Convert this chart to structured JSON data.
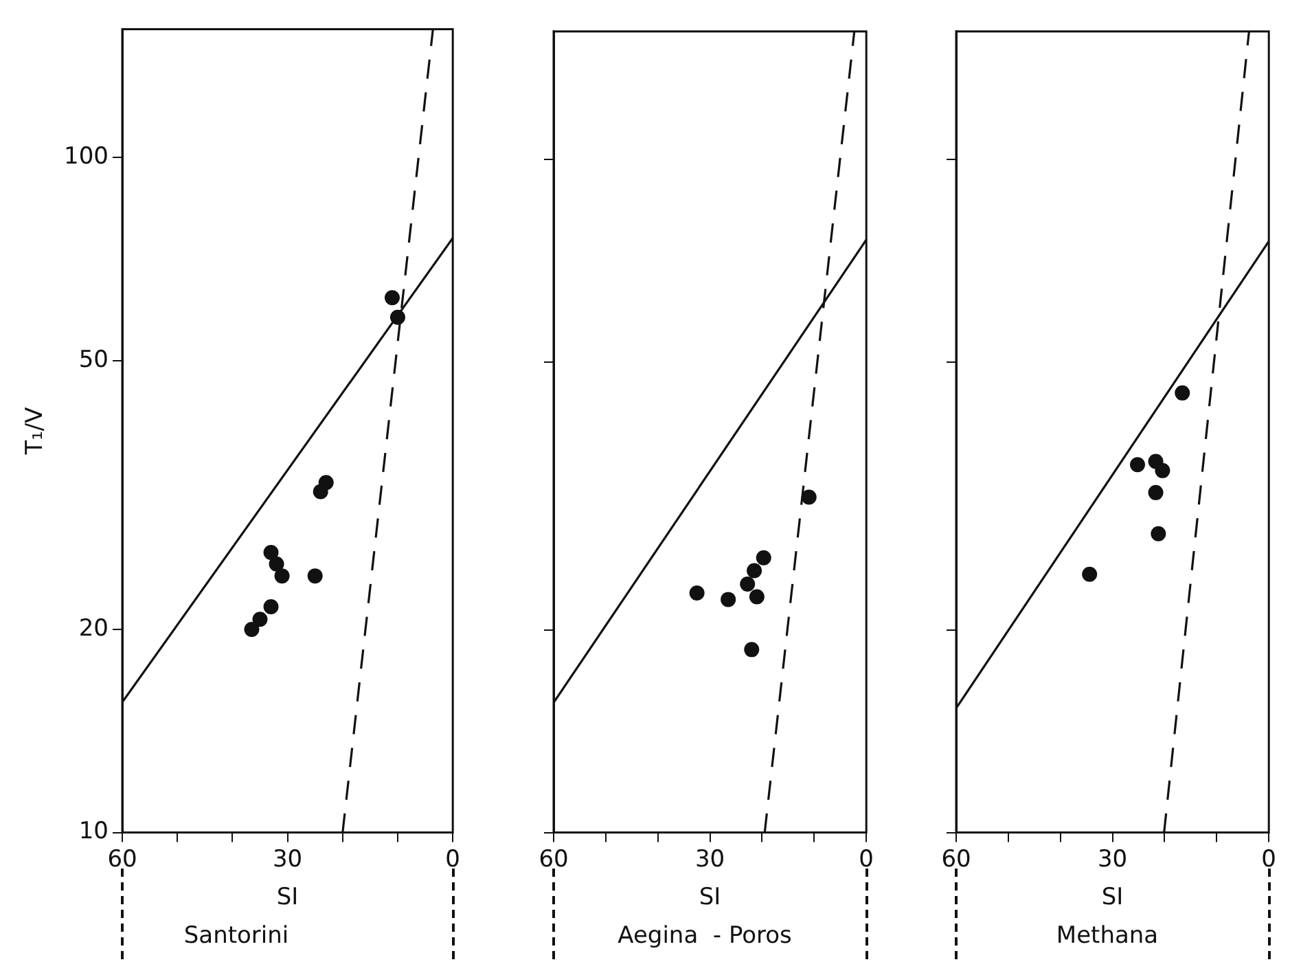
{
  "chart_data": [
    {
      "type": "scatter",
      "title": "Santorini",
      "xlabel": "SI",
      "ylabel": "T₁/V",
      "xlim": [
        60,
        0
      ],
      "ylim": [
        10,
        155
      ],
      "log": "y",
      "grid": false,
      "legend": false,
      "xticks": [
        60,
        {
          "value": 50,
          "label": null
        },
        {
          "value": 40,
          "label": null
        },
        30,
        {
          "value": 20,
          "label": null
        },
        {
          "value": 10,
          "label": null
        },
        0
      ],
      "yticks": [
        10,
        20,
        50,
        100
      ],
      "series": [
        {
          "marker": "circle",
          "color": "#111111",
          "x": [
            11,
            10,
            24,
            23,
            33,
            32,
            31,
            25,
            33,
            35,
            36.5
          ],
          "values": [
            62,
            58,
            32,
            33,
            26,
            25,
            24,
            24,
            21.6,
            20.7,
            20
          ]
        },
        {
          "type": "line",
          "color": "#111111",
          "line_style": "solid",
          "x": [
            60,
            0
          ],
          "values": [
            15.6,
            76
          ]
        },
        {
          "type": "line",
          "color": "#111111",
          "line_style": "dashed",
          "x": [
            20,
            3.6
          ],
          "values": [
            10,
            155
          ]
        }
      ]
    },
    {
      "type": "scatter",
      "title": "Aegina  - Poros",
      "xlabel": "SI",
      "xlim": [
        60,
        0
      ],
      "ylim": [
        10,
        155
      ],
      "log": "y",
      "grid": false,
      "legend": false,
      "tick_labels": "x",
      "xticks": [
        60,
        {
          "value": 50,
          "label": null
        },
        {
          "value": 40,
          "label": null
        },
        30,
        {
          "value": 20,
          "label": null
        },
        {
          "value": 10,
          "label": null
        },
        0
      ],
      "yticks": [
        {
          "value": 10,
          "label": null
        },
        {
          "value": 20,
          "label": null
        },
        {
          "value": 50,
          "label": null
        },
        {
          "value": 100,
          "label": null
        }
      ],
      "series": [
        {
          "marker": "circle",
          "color": "#111111",
          "x": [
            11,
            32.5,
            26.5,
            19.7,
            21.5,
            22.8,
            21,
            22
          ],
          "values": [
            31.5,
            22.7,
            22.2,
            25.6,
            24.5,
            23.4,
            22.4,
            18.7
          ]
        },
        {
          "type": "line",
          "color": "#111111",
          "line_style": "solid",
          "x": [
            60,
            0
          ],
          "values": [
            15.6,
            76
          ]
        },
        {
          "type": "line",
          "color": "#111111",
          "line_style": "dashed",
          "x": [
            19.5,
            2.3
          ],
          "values": [
            10,
            155
          ]
        }
      ]
    },
    {
      "type": "scatter",
      "title": "Methana",
      "xlabel": "SI",
      "xlim": [
        60,
        0
      ],
      "ylim": [
        10,
        155
      ],
      "log": "y",
      "grid": false,
      "legend": false,
      "tick_labels": "x",
      "xticks": [
        60,
        {
          "value": 50,
          "label": null
        },
        {
          "value": 40,
          "label": null
        },
        30,
        {
          "value": 20,
          "label": null
        },
        {
          "value": 10,
          "label": null
        },
        0
      ],
      "yticks": [
        {
          "value": 10,
          "label": null
        },
        {
          "value": 20,
          "label": null
        },
        {
          "value": 50,
          "label": null
        },
        {
          "value": 100,
          "label": null
        }
      ],
      "series": [
        {
          "marker": "circle",
          "color": "#111111",
          "x": [
            16.6,
            25.2,
            21.7,
            20.4,
            21.7,
            21.2,
            34.4
          ],
          "values": [
            45,
            35.2,
            35.6,
            34.5,
            32,
            27.8,
            24.2
          ]
        },
        {
          "type": "line",
          "color": "#111111",
          "line_style": "solid",
          "x": [
            60,
            0
          ],
          "values": [
            15.3,
            75.6
          ]
        },
        {
          "type": "line",
          "color": "#111111",
          "line_style": "dashed",
          "x": [
            20.1,
            3.8
          ],
          "values": [
            10,
            155
          ]
        }
      ]
    }
  ]
}
